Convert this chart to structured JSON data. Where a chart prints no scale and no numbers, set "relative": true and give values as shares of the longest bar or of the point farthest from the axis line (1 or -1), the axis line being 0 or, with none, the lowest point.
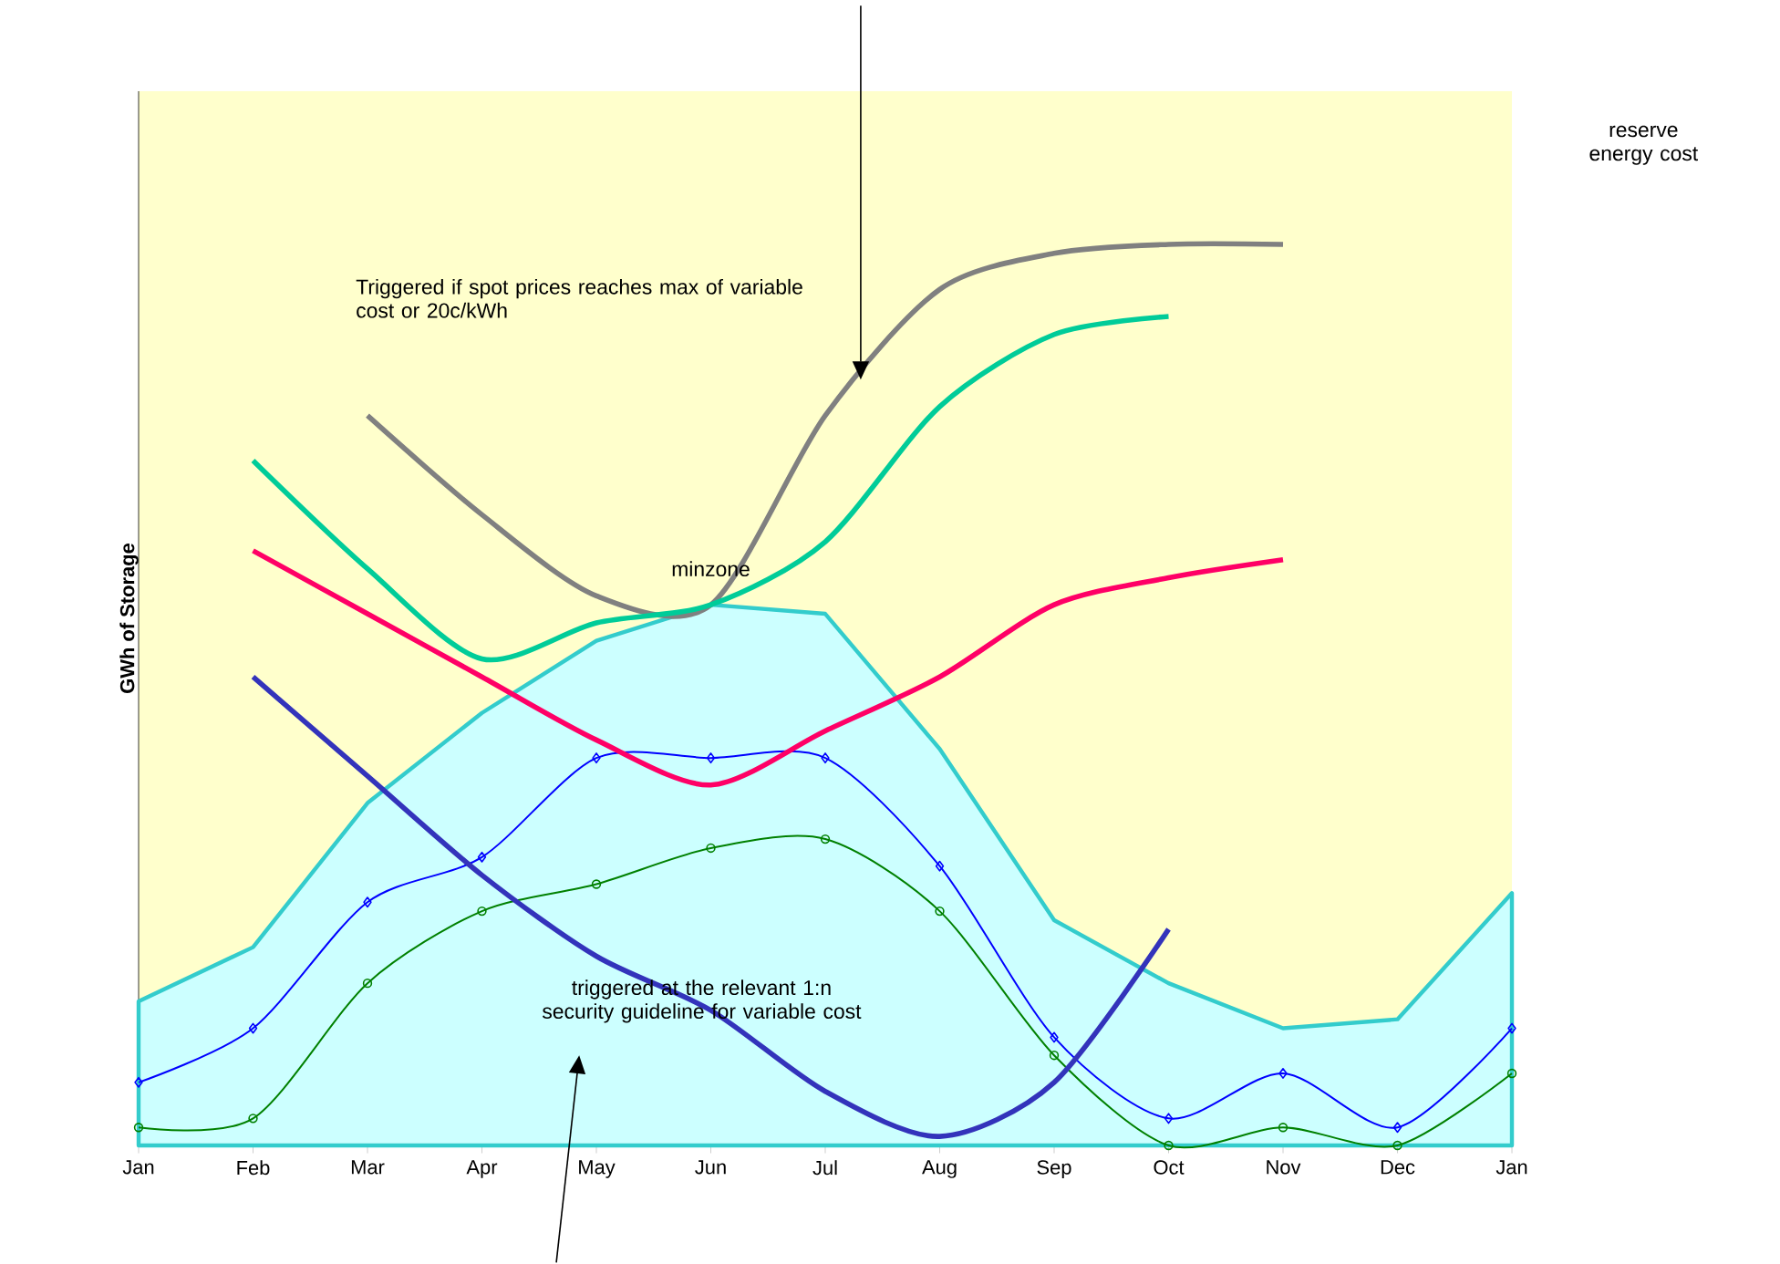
{
  "chart_data": {
    "type": "line",
    "relative": true,
    "ylabel": "GWh of Storage",
    "categories": [
      "Jan",
      "Feb",
      "Mar",
      "Apr",
      "May",
      "Jun",
      "Jul",
      "Aug",
      "Sep",
      "Oct",
      "Nov",
      "Dec",
      "Jan"
    ],
    "grid": false,
    "annotations": [
      "Triggered if spot prices reaches max of variable cost or 20c/kWh",
      "minzone",
      "triggered at the relevant 1:n security guideline for variable cost",
      "reserve energy cost"
    ],
    "series": [
      {
        "type": "area",
        "color": "#33cccc",
        "marker": "none",
        "values": [
          0.16,
          0.22,
          0.38,
          0.48,
          0.56,
          0.6,
          0.59,
          0.44,
          0.25,
          0.18,
          0.13,
          0.14,
          0.28
        ]
      },
      {
        "color": "#0000ff",
        "marker": "diamond",
        "values": [
          0.07,
          0.13,
          0.27,
          0.32,
          0.43,
          0.43,
          0.43,
          0.31,
          0.12,
          0.03,
          0.08,
          0.02,
          0.13
        ]
      },
      {
        "color": "#008000",
        "marker": "circle",
        "values": [
          0.02,
          0.03,
          0.18,
          0.26,
          0.29,
          0.33,
          0.34,
          0.26,
          0.1,
          0,
          0.02,
          0,
          0.08
        ]
      },
      {
        "color": "#808080",
        "marker": "none",
        "values": [
          null,
          null,
          0.81,
          0.7,
          0.61,
          0.6,
          0.81,
          0.95,
          0.99,
          1.0,
          1.0,
          null,
          null
        ]
      },
      {
        "color": "#00cc99",
        "marker": "none",
        "values": [
          null,
          0.76,
          0.64,
          0.54,
          0.58,
          0.6,
          0.67,
          0.82,
          0.9,
          0.92,
          null,
          null,
          null
        ]
      },
      {
        "color": "#ff0066",
        "marker": "none",
        "values": [
          null,
          0.66,
          0.59,
          0.52,
          0.45,
          0.4,
          0.46,
          0.52,
          0.6,
          0.63,
          0.65,
          null,
          null
        ]
      },
      {
        "color": "#3333bb",
        "marker": "none",
        "values": [
          null,
          0.52,
          0.41,
          0.3,
          0.21,
          0.15,
          0.06,
          0.01,
          0.07,
          0.24,
          null,
          null,
          null
        ]
      }
    ]
  }
}
